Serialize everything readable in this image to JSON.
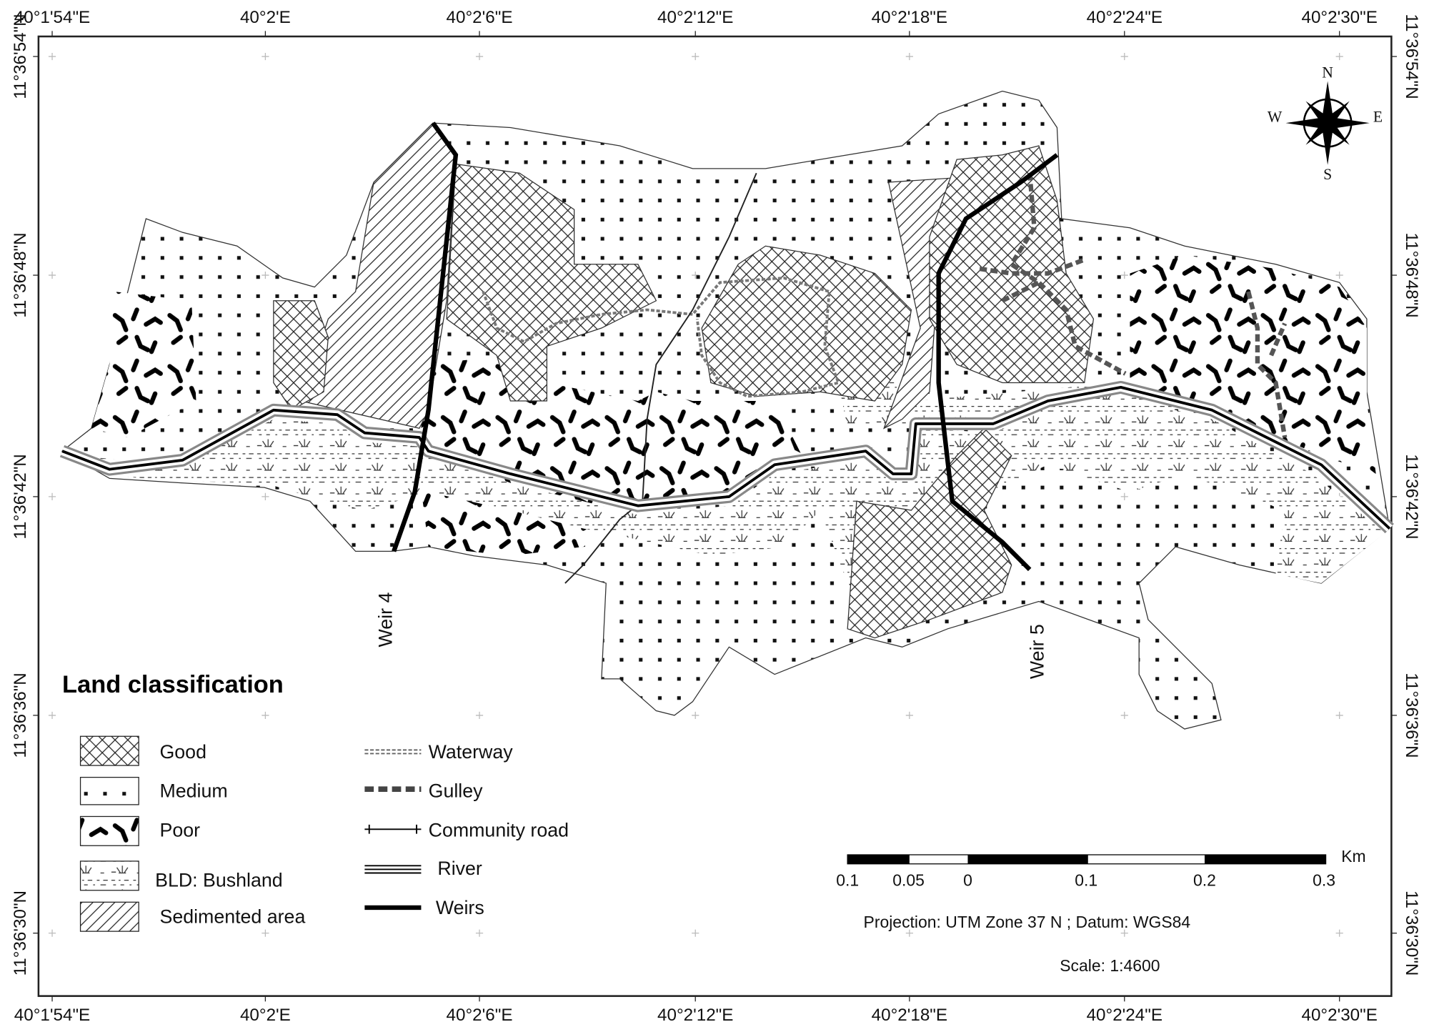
{
  "map": {
    "x_labels": [
      "40°1'54\"E",
      "40°2'E",
      "40°2'6\"E",
      "40°2'12\"E",
      "40°2'18\"E",
      "40°2'24\"E",
      "40°2'30\"E"
    ],
    "y_labels": [
      "11°36'54\"N",
      "11°36'48\"N",
      "11°36'42\"N",
      "11°36'36\"N",
      "11°36'30\"N"
    ],
    "compass": {
      "n": "N",
      "s": "S",
      "e": "E",
      "w": "W"
    },
    "annotations": [
      "Weir 4",
      "Weir 5"
    ],
    "legend": {
      "title": "Land classification",
      "classes": [
        "Good",
        "Medium",
        "Poor",
        "BLD: Bushland",
        "Sedimented area"
      ],
      "lines": [
        "Waterway",
        "Gulley",
        "Community road",
        "River",
        "Weirs"
      ]
    },
    "scale_bar": {
      "labels": [
        "0.1",
        "0.05",
        "0",
        "0.1",
        "0.2",
        "0.3"
      ],
      "unit": "Km"
    },
    "projection": "Projection: UTM Zone 37 N ; Datum: WGS84",
    "scale": "Scale: 1:4600"
  }
}
